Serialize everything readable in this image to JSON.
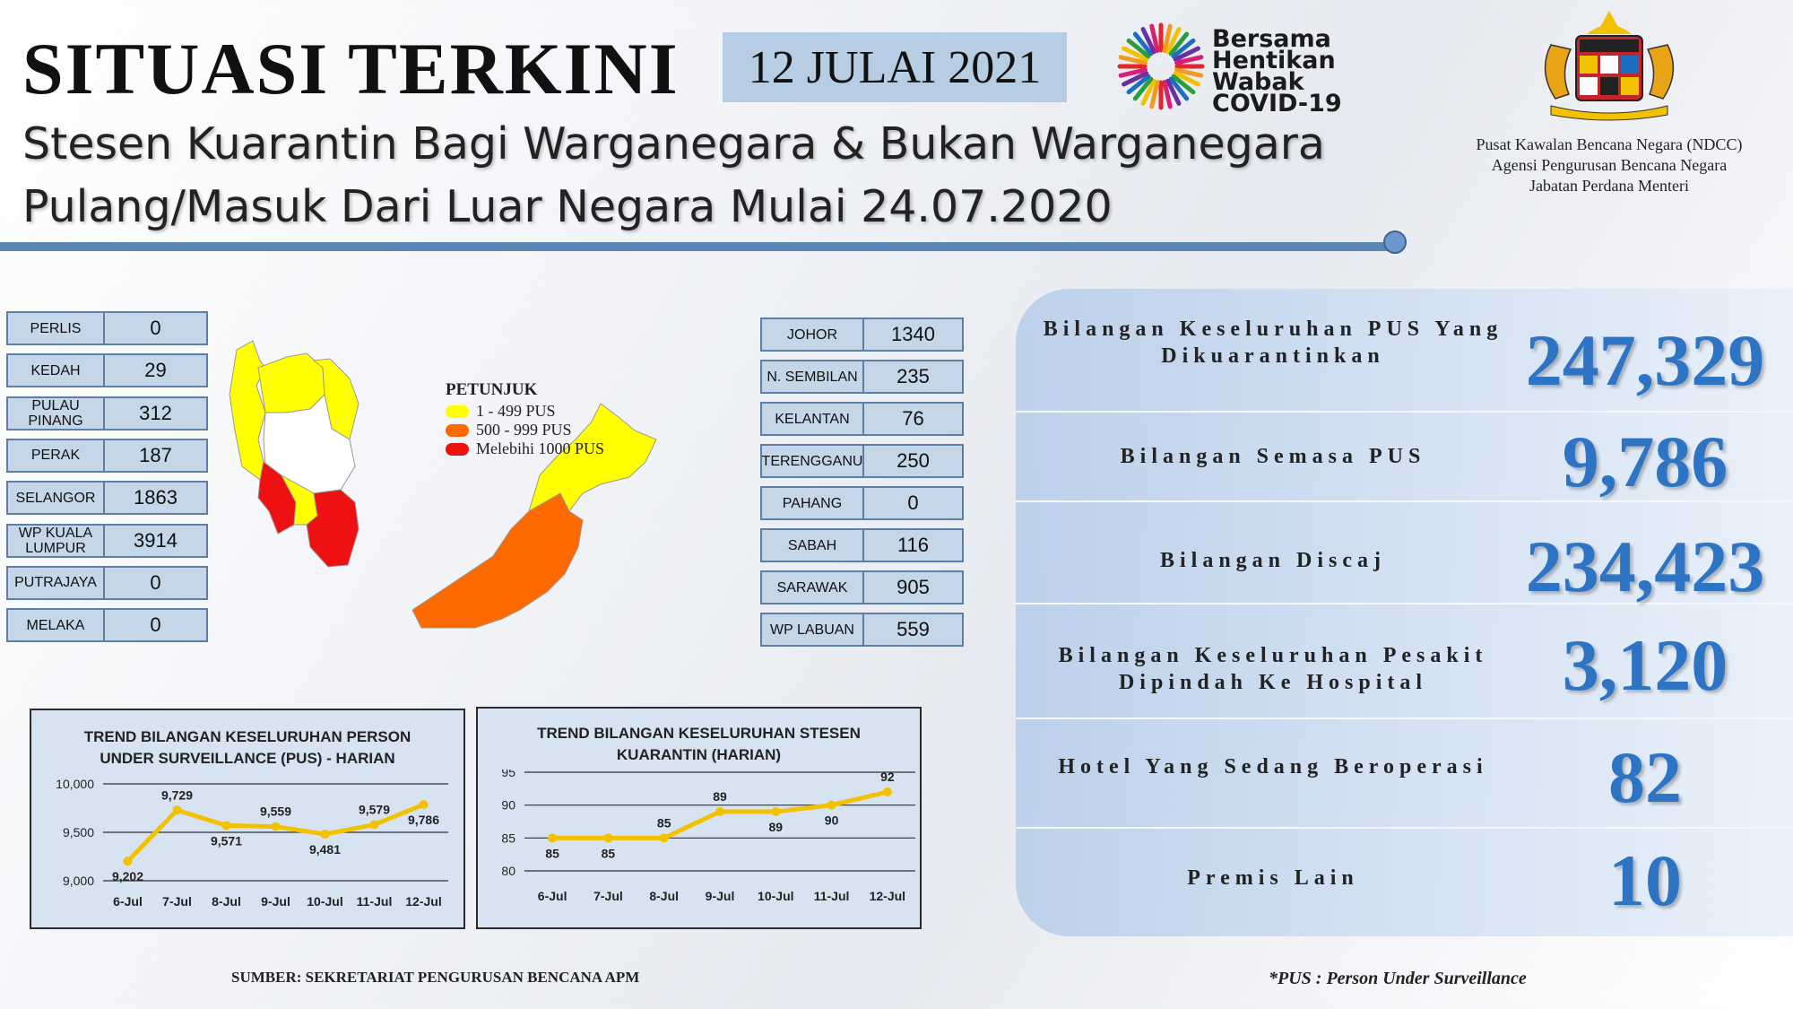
{
  "header": {
    "title": "SITUASI TERKINI",
    "date": "12 JULAI 2021",
    "subtitle_line1": "Stesen Kuarantin Bagi Warganegara & Bukan Warganegara",
    "subtitle_line2": "Pulang/Masuk Dari Luar Negara Mulai 24.07.2020"
  },
  "logo": {
    "campaign_lines": [
      "Bersama",
      "Hentikan",
      "Wabak",
      "COVID-19"
    ],
    "agency_lines": [
      "Pusat Kawalan Bencana Negara (NDCC)",
      "Agensi Pengurusan Bencana Negara",
      "Jabatan Perdana Menteri"
    ]
  },
  "states_left": [
    {
      "name": "PERLIS",
      "value": "0"
    },
    {
      "name": "KEDAH",
      "value": "29"
    },
    {
      "name": "PULAU PINANG",
      "value": "312"
    },
    {
      "name": "PERAK",
      "value": "187"
    },
    {
      "name": "SELANGOR",
      "value": "1863"
    },
    {
      "name": "WP KUALA LUMPUR",
      "value": "3914"
    },
    {
      "name": "PUTRAJAYA",
      "value": "0"
    },
    {
      "name": "MELAKA",
      "value": "0"
    }
  ],
  "states_right": [
    {
      "name": "JOHOR",
      "value": "1340"
    },
    {
      "name": "N. SEMBILAN",
      "value": "235"
    },
    {
      "name": "KELANTAN",
      "value": "76"
    },
    {
      "name": "TERENGGANU",
      "value": "250"
    },
    {
      "name": "PAHANG",
      "value": "0"
    },
    {
      "name": "SABAH",
      "value": "116"
    },
    {
      "name": "SARAWAK",
      "value": "905"
    },
    {
      "name": "WP LABUAN",
      "value": "559"
    }
  ],
  "legend": {
    "title": "PETUNJUK",
    "items": [
      {
        "label": "1 - 499 PUS",
        "color": "#ffff00"
      },
      {
        "label": "500 - 999 PUS",
        "color": "#ff6a00"
      },
      {
        "label": "Melebihi 1000 PUS",
        "color": "#ee1111"
      }
    ]
  },
  "stats": [
    {
      "label": "Bilangan Keseluruhan PUS Yang Dikuarantinkan",
      "value": "247,329"
    },
    {
      "label": "Bilangan Semasa PUS",
      "value": "9,786"
    },
    {
      "label": "Bilangan Discaj",
      "value": "234,423"
    },
    {
      "label": "Bilangan Keseluruhan Pesakit Dipindah Ke Hospital",
      "value": "3,120"
    },
    {
      "label": "Hotel Yang Sedang Beroperasi",
      "value": "82"
    },
    {
      "label": "Premis Lain",
      "value": "10"
    }
  ],
  "chart_data": [
    {
      "type": "line",
      "title": "TREND BILANGAN KESELURUHAN PERSON UNDER SURVEILLANCE (PUS) - HARIAN",
      "categories": [
        "6-Jul",
        "7-Jul",
        "8-Jul",
        "9-Jul",
        "10-Jul",
        "11-Jul",
        "12-Jul"
      ],
      "series": [
        {
          "values": [
            9202,
            9729,
            9571,
            9559,
            9481,
            9579,
            9786
          ]
        }
      ],
      "ylim": [
        9000,
        10000
      ],
      "yticks": [
        "9,000",
        "9,500",
        "10,000"
      ],
      "data_labels": [
        "9,202",
        "9,729",
        "9,571",
        "9,559",
        "9,481",
        "9,579",
        "9,786"
      ],
      "color": "#f2c200",
      "grid": true
    },
    {
      "type": "line",
      "title": "TREND BILANGAN KESELURUHAN STESEN KUARANTIN (HARIAN)",
      "categories": [
        "6-Jul",
        "7-Jul",
        "8-Jul",
        "9-Jul",
        "10-Jul",
        "11-Jul",
        "12-Jul"
      ],
      "series": [
        {
          "values": [
            85,
            85,
            85,
            89,
            89,
            90,
            92
          ]
        }
      ],
      "ylim": [
        80,
        95
      ],
      "yticks": [
        "80",
        "85",
        "90",
        "95"
      ],
      "data_labels": [
        "85",
        "85",
        "85",
        "89",
        "89",
        "90",
        "92"
      ],
      "color": "#f2c200",
      "grid": true
    }
  ],
  "footer": {
    "source": "SUMBER: SEKRETARIAT PENGURUSAN BENCANA APM",
    "note": "*PUS : Person Under Surveillance"
  }
}
